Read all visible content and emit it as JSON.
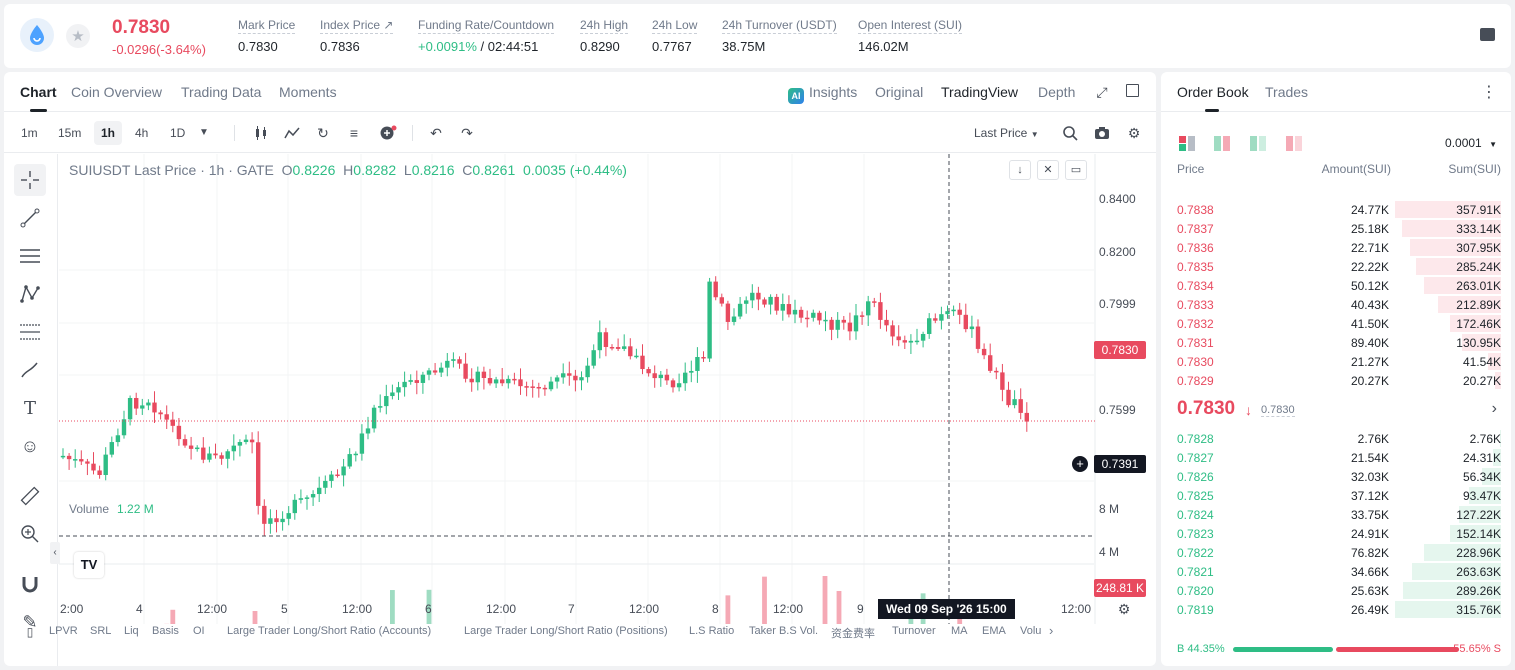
{
  "header": {
    "symbol_logo_icon": "sui-drop-icon",
    "last_price": "0.7830",
    "change": "-0.0296(-3.64%)",
    "stats": [
      {
        "label": "Mark Price",
        "value": "0.7830"
      },
      {
        "label": "Index Price ↗",
        "value": "0.7836"
      },
      {
        "label": "Funding Rate/Countdown",
        "value_green": "+0.0091%",
        "value": " / 02:44:51"
      },
      {
        "label": "24h High",
        "value": "0.8290"
      },
      {
        "label": "24h Low",
        "value": "0.7767"
      },
      {
        "label": "24h Turnover (USDT)",
        "value": "38.75M"
      },
      {
        "label": "Open Interest (SUI)",
        "value": "146.02M"
      }
    ]
  },
  "chart_tabs": [
    "Chart",
    "Coin Overview",
    "Trading Data",
    "Moments"
  ],
  "chart_modes": {
    "insights": "Insights",
    "ai_badge": "AI",
    "original": "Original",
    "tradingview": "TradingView",
    "depth": "Depth"
  },
  "timeframes": [
    "1m",
    "15m",
    "1h",
    "4h",
    "1D"
  ],
  "price_type": "Last Price",
  "legend": {
    "symbol": "SUIUSDT Last Price · 1h · GATE",
    "o_label": "O",
    "o": "0.8226",
    "h_label": "H",
    "h": "0.8282",
    "l_label": "L",
    "l": "0.8216",
    "c_label": "C",
    "c": "0.8261",
    "chg": "0.0035 (+0.44%)"
  },
  "volume_legend": {
    "label": "Volume",
    "value": "1.22 M"
  },
  "tv_logo": "TV",
  "y_axis_labels": [
    "0.8400",
    "0.8200",
    "0.7999",
    "0.7599"
  ],
  "vol_axis_labels": [
    "8 M",
    "4 M"
  ],
  "current_price_tag": "0.7830",
  "crosshair_price_tag": "0.7391",
  "volume_tag": "248.81 K",
  "x_axis_labels": [
    "2:00",
    "4",
    "12:00",
    "5",
    "12:00",
    "6",
    "12:00",
    "7",
    "12:00",
    "8",
    "12:00",
    "9",
    "12:00"
  ],
  "crosshair_time": "Wed 09 Sep '26   15:00",
  "indicators": [
    "LPVR",
    "SRL",
    "Liq",
    "Basis",
    "OI",
    "Large Trader Long/Short Ratio (Accounts)",
    "Large Trader Long/Short Ratio (Positions)",
    "L.S Ratio",
    "Taker B.S Vol.",
    "资金费率",
    "Turnover",
    "MA",
    "EMA",
    "Volu"
  ],
  "colors": {
    "up": "#2ebd85",
    "down": "#e84a5f",
    "up_soft": "#9fdcc2",
    "down_soft": "#f5a9b5"
  },
  "order_book": {
    "tabs": [
      "Order Book",
      "Trades"
    ],
    "precision": "0.0001",
    "headers": {
      "price": "Price",
      "amount": "Amount(SUI)",
      "sum": "Sum(SUI)"
    },
    "asks": [
      {
        "price": "0.7838",
        "amount": "24.77K",
        "sum": "357.91K",
        "depth": 1.0
      },
      {
        "price": "0.7837",
        "amount": "25.18K",
        "sum": "333.14K",
        "depth": 0.93
      },
      {
        "price": "0.7836",
        "amount": "22.71K",
        "sum": "307.95K",
        "depth": 0.86
      },
      {
        "price": "0.7835",
        "amount": "22.22K",
        "sum": "285.24K",
        "depth": 0.8
      },
      {
        "price": "0.7834",
        "amount": "50.12K",
        "sum": "263.01K",
        "depth": 0.73
      },
      {
        "price": "0.7833",
        "amount": "40.43K",
        "sum": "212.89K",
        "depth": 0.59
      },
      {
        "price": "0.7832",
        "amount": "41.50K",
        "sum": "172.46K",
        "depth": 0.48
      },
      {
        "price": "0.7831",
        "amount": "89.40K",
        "sum": "130.95K",
        "depth": 0.37
      },
      {
        "price": "0.7830",
        "amount": "21.27K",
        "sum": "41.54K",
        "depth": 0.12
      },
      {
        "price": "0.7829",
        "amount": "20.27K",
        "sum": "20.27K",
        "depth": 0.06
      }
    ],
    "mid_price": "0.7830",
    "mid_arrow": "↓",
    "mark_price": "0.7830",
    "bids": [
      {
        "price": "0.7828",
        "amount": "2.76K",
        "sum": "2.76K",
        "depth": 0.01
      },
      {
        "price": "0.7827",
        "amount": "21.54K",
        "sum": "24.31K",
        "depth": 0.08
      },
      {
        "price": "0.7826",
        "amount": "32.03K",
        "sum": "56.34K",
        "depth": 0.18
      },
      {
        "price": "0.7825",
        "amount": "37.12K",
        "sum": "93.47K",
        "depth": 0.3
      },
      {
        "price": "0.7824",
        "amount": "33.75K",
        "sum": "127.22K",
        "depth": 0.4
      },
      {
        "price": "0.7823",
        "amount": "24.91K",
        "sum": "152.14K",
        "depth": 0.48
      },
      {
        "price": "0.7822",
        "amount": "76.82K",
        "sum": "228.96K",
        "depth": 0.73
      },
      {
        "price": "0.7821",
        "amount": "34.66K",
        "sum": "263.63K",
        "depth": 0.84
      },
      {
        "price": "0.7820",
        "amount": "25.63K",
        "sum": "289.26K",
        "depth": 0.92
      },
      {
        "price": "0.7819",
        "amount": "26.49K",
        "sum": "315.76K",
        "depth": 1.0
      }
    ],
    "buy_ratio": "B 44.35%",
    "sell_ratio": "55.65% S",
    "buy_fraction": 0.4435
  }
}
